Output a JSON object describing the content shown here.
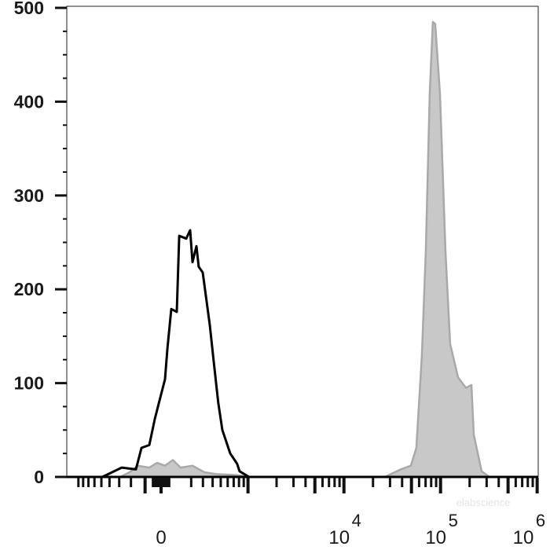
{
  "chart_data": {
    "type": "area",
    "title": "",
    "xlabel": "",
    "ylabel": "",
    "x_scale": "biexponential",
    "xlim": [
      -500,
      1000000
    ],
    "ylim": [
      0,
      500
    ],
    "grid": false,
    "legend": "none",
    "y_ticks": [
      {
        "value": 0,
        "label": "0"
      },
      {
        "value": 100,
        "label": "100"
      },
      {
        "value": 200,
        "label": "200"
      },
      {
        "value": 300,
        "label": "300"
      },
      {
        "value": 400,
        "label": "400"
      },
      {
        "value": 500,
        "label": "500"
      }
    ],
    "y_minor_step": 25,
    "x_ticks": [
      {
        "value": 0,
        "base": "0",
        "exp": ""
      },
      {
        "value": 10000,
        "base": "10",
        "exp": "4"
      },
      {
        "value": 100000,
        "base": "10",
        "exp": "5"
      },
      {
        "value": 1000000,
        "base": "10",
        "exp": "6"
      }
    ],
    "series": [
      {
        "style": "black-outline",
        "color": "#000000",
        "x": [
          -487,
          -277,
          -163,
          -124,
          -73,
          -38,
          -10,
          24,
          39,
          63,
          98,
          114,
          163,
          192,
          210,
          242,
          262,
          298,
          369,
          412,
          468,
          522,
          640,
          763,
          811,
          1027
        ],
        "y": [
          0,
          10,
          8,
          31,
          34,
          62,
          81,
          104,
          137,
          179,
          176,
          257,
          254,
          263,
          229,
          246,
          224,
          218,
          162,
          123,
          79,
          50,
          25,
          14,
          6,
          0
        ]
      },
      {
        "style": "gray-filled",
        "color": "#c8c8c8",
        "x": [
          -290,
          -210,
          -151,
          -73,
          -24,
          24,
          73,
          124,
          210,
          313,
          440,
          737,
          1080,
          26600,
          38700,
          49300,
          56200,
          64100,
          70400,
          77300,
          83300,
          88100,
          98700,
          112500,
          125800,
          151800,
          183000,
          208700,
          220700,
          266200,
          321300
        ],
        "y": [
          0,
          5,
          12,
          10,
          15,
          12,
          18,
          10,
          12,
          5,
          3,
          2,
          0,
          0,
          8,
          12,
          31,
          129,
          240,
          408,
          485,
          483,
          408,
          240,
          142,
          106,
          95,
          98,
          45,
          6,
          0
        ]
      }
    ]
  },
  "watermark": "elabscience"
}
